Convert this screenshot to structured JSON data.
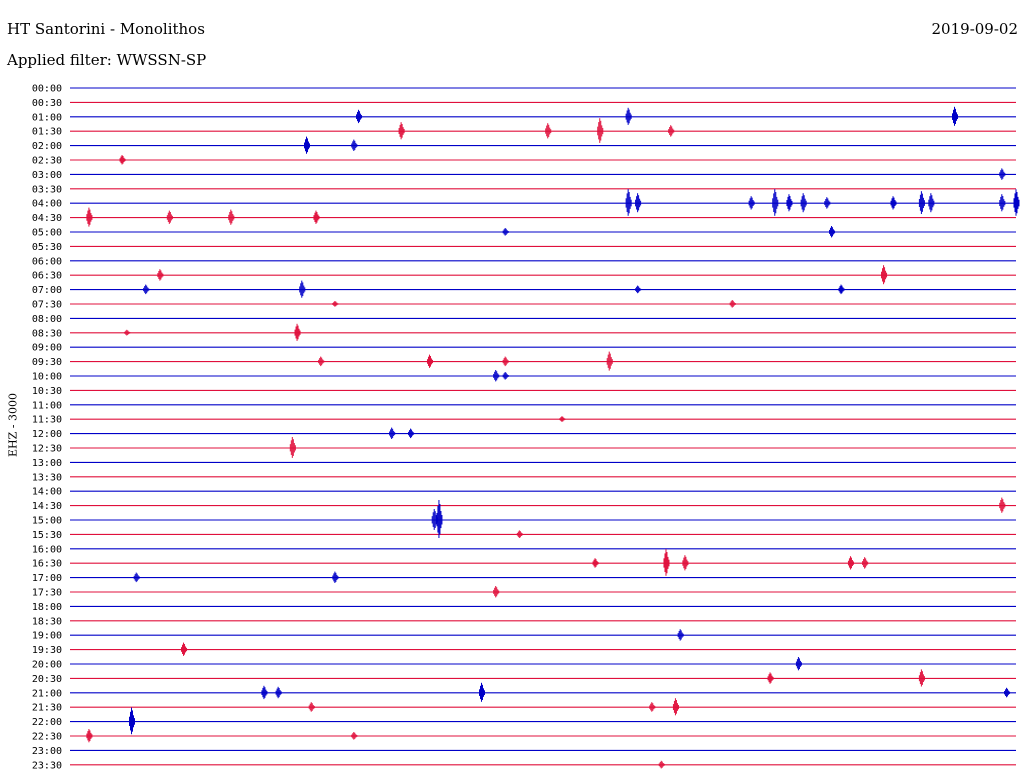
{
  "header": {
    "station": "HT Santorini - Monolithos",
    "filter": "Applied filter: WWSSN-SP",
    "date": "2019-09-02"
  },
  "chart_data": {
    "type": "line",
    "ylabel": "EHZ - 3000",
    "rows": [
      "00:00",
      "00:30",
      "01:00",
      "01:30",
      "02:00",
      "02:30",
      "03:00",
      "03:30",
      "04:00",
      "04:30",
      "05:00",
      "05:30",
      "06:00",
      "06:30",
      "07:00",
      "07:30",
      "08:00",
      "08:30",
      "09:00",
      "09:30",
      "10:00",
      "10:30",
      "11:00",
      "11:30",
      "12:00",
      "12:30",
      "13:00",
      "13:30",
      "14:00",
      "14:30",
      "15:00",
      "15:30",
      "16:00",
      "16:30",
      "17:00",
      "17:30",
      "18:00",
      "18:30",
      "19:00",
      "19:30",
      "20:00",
      "20:30",
      "21:00",
      "21:30",
      "22:00",
      "22:30",
      "23:00",
      "23:30"
    ],
    "colors": [
      "#0000c8",
      "#e0103c"
    ],
    "events": [
      [
        2,
        0.305,
        7
      ],
      [
        2,
        0.59,
        9
      ],
      [
        2,
        0.935,
        10
      ],
      [
        3,
        0.35,
        9
      ],
      [
        3,
        0.505,
        8
      ],
      [
        3,
        0.56,
        13
      ],
      [
        3,
        0.635,
        6
      ],
      [
        4,
        0.25,
        9
      ],
      [
        4,
        0.3,
        6
      ],
      [
        5,
        0.055,
        5
      ],
      [
        6,
        0.985,
        6
      ],
      [
        8,
        0.59,
        14
      ],
      [
        8,
        0.6,
        10
      ],
      [
        8,
        0.72,
        7
      ],
      [
        8,
        0.745,
        14
      ],
      [
        8,
        0.76,
        9
      ],
      [
        8,
        0.775,
        10
      ],
      [
        8,
        0.8,
        6
      ],
      [
        8,
        0.87,
        7
      ],
      [
        8,
        0.9,
        12
      ],
      [
        8,
        0.91,
        10
      ],
      [
        8,
        0.985,
        9
      ],
      [
        8,
        1.0,
        14
      ],
      [
        9,
        0.02,
        10
      ],
      [
        9,
        0.105,
        7
      ],
      [
        9,
        0.17,
        8
      ],
      [
        9,
        0.26,
        7
      ],
      [
        10,
        0.46,
        4
      ],
      [
        10,
        0.805,
        6
      ],
      [
        13,
        0.095,
        6
      ],
      [
        13,
        0.86,
        10
      ],
      [
        14,
        0.08,
        5
      ],
      [
        14,
        0.245,
        9
      ],
      [
        14,
        0.6,
        4
      ],
      [
        14,
        0.815,
        5
      ],
      [
        15,
        0.28,
        3
      ],
      [
        15,
        0.7,
        4
      ],
      [
        17,
        0.06,
        3
      ],
      [
        17,
        0.24,
        9
      ],
      [
        19,
        0.265,
        5
      ],
      [
        19,
        0.38,
        7
      ],
      [
        19,
        0.46,
        5
      ],
      [
        19,
        0.57,
        10
      ],
      [
        20,
        0.45,
        6
      ],
      [
        20,
        0.46,
        4
      ],
      [
        23,
        0.52,
        3
      ],
      [
        24,
        0.34,
        6
      ],
      [
        24,
        0.36,
        5
      ],
      [
        25,
        0.235,
        11
      ],
      [
        29,
        0.985,
        8
      ],
      [
        30,
        0.385,
        11
      ],
      [
        30,
        0.39,
        20
      ],
      [
        31,
        0.475,
        4
      ],
      [
        33,
        0.555,
        5
      ],
      [
        33,
        0.63,
        14
      ],
      [
        33,
        0.65,
        8
      ],
      [
        33,
        0.825,
        7
      ],
      [
        33,
        0.84,
        6
      ],
      [
        34,
        0.07,
        5
      ],
      [
        34,
        0.28,
        6
      ],
      [
        35,
        0.45,
        6
      ],
      [
        38,
        0.645,
        6
      ],
      [
        39,
        0.12,
        7
      ],
      [
        40,
        0.77,
        7
      ],
      [
        41,
        0.74,
        6
      ],
      [
        41,
        0.9,
        9
      ],
      [
        42,
        0.205,
        7
      ],
      [
        42,
        0.22,
        6
      ],
      [
        42,
        0.435,
        10
      ],
      [
        42,
        0.99,
        5
      ],
      [
        43,
        0.255,
        5
      ],
      [
        43,
        0.615,
        5
      ],
      [
        43,
        0.64,
        9
      ],
      [
        44,
        0.065,
        14
      ],
      [
        45,
        0.02,
        7
      ],
      [
        45,
        0.3,
        4
      ],
      [
        47,
        0.625,
        4
      ]
    ]
  }
}
